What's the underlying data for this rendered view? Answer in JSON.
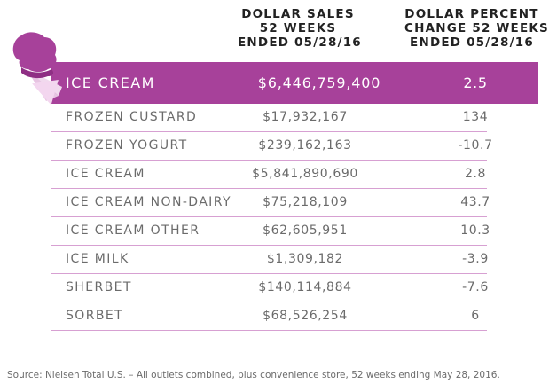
{
  "headers": {
    "sales": [
      "DOLLAR SALES",
      "52 WEEKS",
      "ENDED 05/28/16"
    ],
    "change": [
      "DOLLAR PERCENT",
      "CHANGE 52 WEEKS",
      "ENDED 05/28/16"
    ]
  },
  "highlight": {
    "name": "ICE CREAM",
    "sales": "$6,446,759,400",
    "change": "2.5"
  },
  "rows": [
    {
      "name": "FROZEN CUSTARD",
      "sales": "$17,932,167",
      "change": "134"
    },
    {
      "name": "FROZEN YOGURT",
      "sales": "$239,162,163",
      "change": "-10.7"
    },
    {
      "name": "ICE CREAM",
      "sales": "$5,841,890,690",
      "change": "2.8"
    },
    {
      "name": "ICE CREAM NON-DAIRY",
      "sales": "$75,218,109",
      "change": "43.7"
    },
    {
      "name": "ICE CREAM OTHER",
      "sales": "$62,605,951",
      "change": "10.3"
    },
    {
      "name": "ICE MILK",
      "sales": "$1,309,182",
      "change": "-3.9"
    },
    {
      "name": "SHERBET",
      "sales": "$140,114,884",
      "change": "-7.6"
    },
    {
      "name": "SORBET",
      "sales": "$68,526,254",
      "change": "6"
    }
  ],
  "footnote": "Source: Nielsen Total U.S. – All outlets combined, plus convenience store, 52 weeks ending May 28, 2016.",
  "colors": {
    "accent": "#a7419a",
    "divider": "#d7a0d2",
    "text": "#6b6b6b"
  },
  "icons": [
    "ice-cream-cone-icon"
  ]
}
